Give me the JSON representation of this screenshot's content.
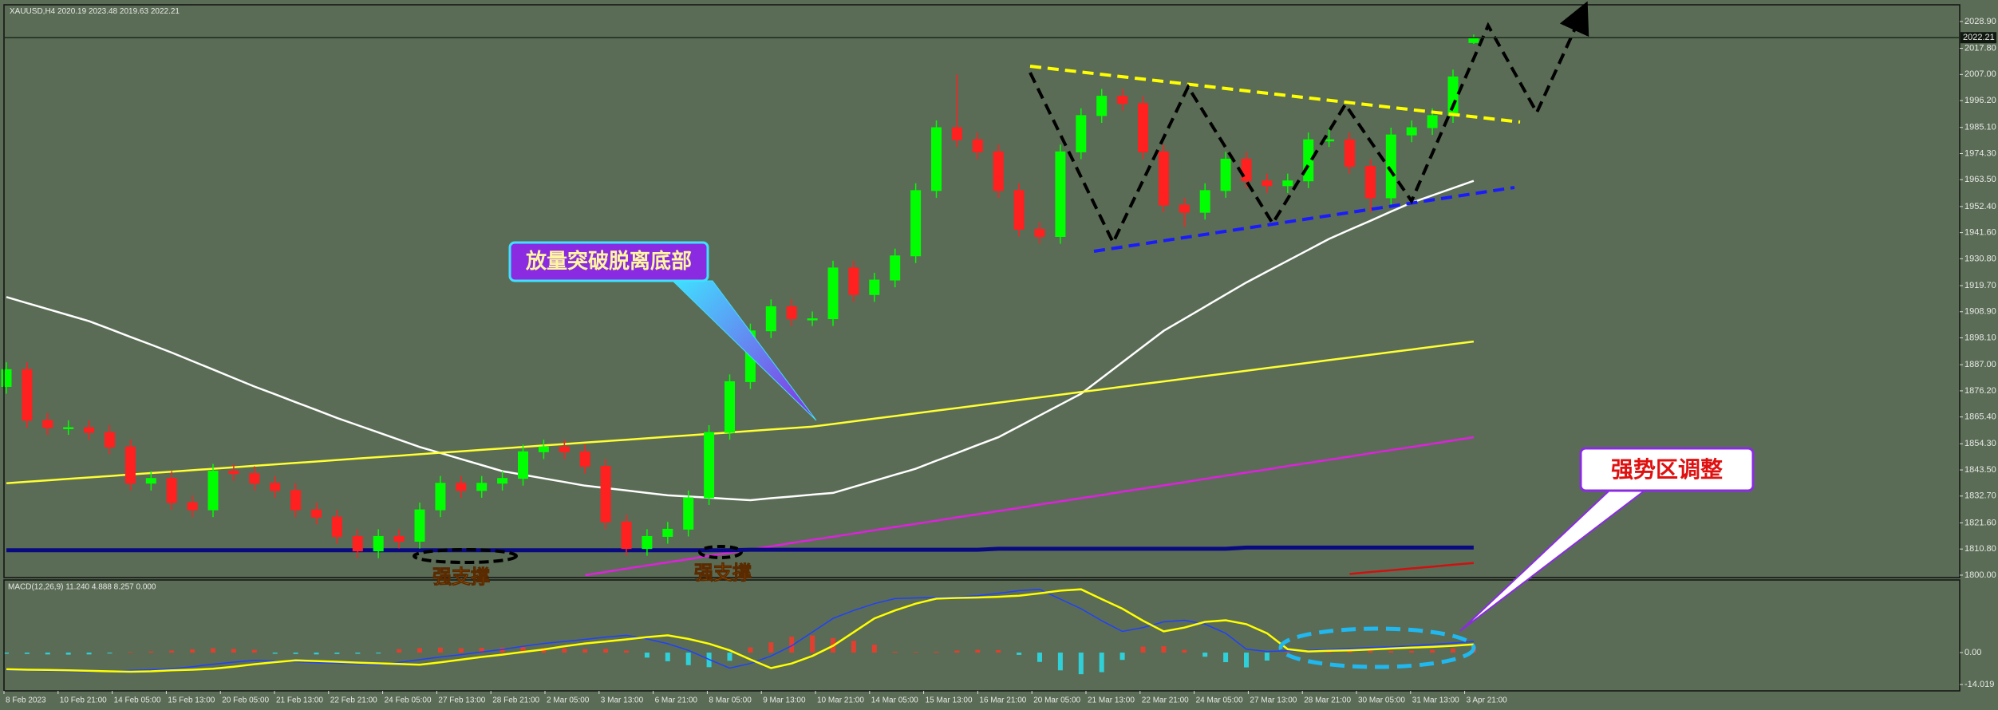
{
  "chart_data": {
    "type": "candlestick",
    "symbol": "XAUUSD,H4",
    "open": [
      1878,
      1885,
      1864,
      1861,
      1861,
      1859,
      1853,
      1838,
      1840,
      1830,
      1827,
      1843,
      1842,
      1838,
      1835,
      1827,
      1824,
      1816,
      1810,
      1816,
      1814,
      1827,
      1838,
      1835,
      1838,
      1840,
      1851,
      1853,
      1851,
      1845,
      1822,
      1811,
      1816,
      1819,
      1832,
      1859,
      1880,
      1901,
      1911,
      1906,
      1906,
      1927,
      1916,
      1922,
      1932,
      1959,
      1985,
      1980,
      1975,
      1959,
      1943,
      1940,
      1975,
      1990,
      1998,
      1995,
      1975,
      1953,
      1950,
      1959,
      1972,
      1963,
      1961,
      1963,
      1980,
      1980,
      1969,
      1956,
      1982,
      1985,
      1990,
      2020.19
    ],
    "high": [
      1888,
      1888,
      1867,
      1864,
      1864,
      1862,
      1856,
      1843,
      1843,
      1833,
      1846,
      1846,
      1845,
      1841,
      1838,
      1830,
      1827,
      1819,
      1819,
      1819,
      1830,
      1841,
      1841,
      1841,
      1843,
      1854,
      1856,
      1856,
      1854,
      1848,
      1825,
      1819,
      1822,
      1835,
      1862,
      1883,
      1904,
      1914,
      1914,
      1909,
      1930,
      1930,
      1925,
      1935,
      1962,
      1988,
      2007,
      1983,
      1978,
      1962,
      1946,
      1978,
      1993,
      2001,
      2001,
      1998,
      1978,
      1956,
      1962,
      1975,
      1975,
      1966,
      1966,
      1983,
      1985,
      1983,
      1972,
      1985,
      1988,
      1993,
      2009,
      2023.48
    ],
    "low": [
      1875,
      1861,
      1858,
      1858,
      1856,
      1850,
      1835,
      1835,
      1827,
      1824,
      1824,
      1839,
      1835,
      1832,
      1824,
      1821,
      1813,
      1807,
      1807,
      1811,
      1811,
      1824,
      1832,
      1832,
      1835,
      1837,
      1848,
      1848,
      1842,
      1819,
      1808,
      1808,
      1813,
      1816,
      1829,
      1856,
      1877,
      1898,
      1903,
      1903,
      1903,
      1913,
      1913,
      1919,
      1929,
      1956,
      1977,
      1972,
      1956,
      1940,
      1937,
      1937,
      1972,
      1987,
      1992,
      1972,
      1950,
      1944,
      1947,
      1956,
      1960,
      1958,
      1958,
      1960,
      1977,
      1966,
      1950,
      1953,
      1979,
      1982,
      1987,
      2019.63
    ],
    "close": [
      1885,
      1864,
      1861,
      1861,
      1859,
      1853,
      1838,
      1840,
      1830,
      1827,
      1843,
      1842,
      1838,
      1835,
      1827,
      1824,
      1816,
      1810,
      1816,
      1814,
      1827,
      1838,
      1835,
      1838,
      1840,
      1851,
      1853,
      1851,
      1845,
      1822,
      1811,
      1816,
      1819,
      1832,
      1859,
      1880,
      1901,
      1911,
      1906,
      1906,
      1927,
      1916,
      1922,
      1932,
      1959,
      1985,
      1980,
      1975,
      1959,
      1943,
      1940,
      1975,
      1990,
      1998,
      1995,
      1975,
      1953,
      1950,
      1959,
      1972,
      1963,
      1961,
      1963,
      1980,
      1980,
      1969,
      1956,
      1982,
      1985,
      1990,
      2006,
      2022.21
    ],
    "up_color": "#00ff00",
    "down_color": "#ff2020",
    "ylim": [
      1799,
      2035.8
    ],
    "yticks": [
      {
        "value": 2028.9,
        "label": "2028.90"
      },
      {
        "value": 2017.8,
        "label": "2017.80"
      },
      {
        "value": 2007,
        "label": "2007.00"
      },
      {
        "value": 1996.2,
        "label": "1996.20"
      },
      {
        "value": 1985.1,
        "label": "1985.10"
      },
      {
        "value": 1974.3,
        "label": "1974.30"
      },
      {
        "value": 1963.5,
        "label": "1963.50"
      },
      {
        "value": 1952.4,
        "label": "1952.40"
      },
      {
        "value": 1941.6,
        "label": "1941.60"
      },
      {
        "value": 1930.8,
        "label": "1930.80"
      },
      {
        "value": 1919.7,
        "label": "1919.70"
      },
      {
        "value": 1908.9,
        "label": "1908.90"
      },
      {
        "value": 1898.1,
        "label": "1898.10"
      },
      {
        "value": 1887,
        "label": "1887.00"
      },
      {
        "value": 1876.2,
        "label": "1876.20"
      },
      {
        "value": 1865.4,
        "label": "1865.40"
      },
      {
        "value": 1854.3,
        "label": "1854.30"
      },
      {
        "value": 1843.5,
        "label": "1843.50"
      },
      {
        "value": 1832.7,
        "label": "1832.70"
      },
      {
        "value": 1821.6,
        "label": "1821.60"
      },
      {
        "value": 1810.8,
        "label": "1810.80"
      },
      {
        "value": 1800,
        "label": "1800.00"
      }
    ],
    "xlabels": [
      "8 Feb 2023",
      "10 Feb 21:00",
      "14 Feb 05:00",
      "15 Feb 13:00",
      "20 Feb 05:00",
      "21 Feb 13:00",
      "22 Feb 21:00",
      "24 Feb 05:00",
      "27 Feb 13:00",
      "28 Feb 21:00",
      "2 Mar 05:00",
      "3 Mar 13:00",
      "6 Mar 21:00",
      "8 Mar 05:00",
      "9 Mar 13:00",
      "10 Mar 21:00",
      "14 Mar 05:00",
      "15 Mar 13:00",
      "16 Mar 21:00",
      "20 Mar 05:00",
      "21 Mar 13:00",
      "22 Mar 21:00",
      "24 Mar 05:00",
      "27 Mar 13:00",
      "28 Mar 21:00",
      "30 Mar 05:00",
      "31 Mar 13:00",
      "3 Apr 21:00"
    ],
    "grid": false,
    "overlays": [
      {
        "color": "#ffffff",
        "values": [
          1915,
          1912.5,
          1910,
          1907.5,
          1905,
          1901.8,
          1898.5,
          1895.3,
          1892,
          1888.5,
          1885,
          1881.5,
          1878,
          1874.8,
          1871.5,
          1868.3,
          1865,
          1862,
          1859,
          1856,
          1853,
          1850.5,
          1848,
          1845.5,
          1843,
          1841.5,
          1840,
          1838.5,
          1837,
          1836,
          1835,
          1834,
          1833,
          1832.5,
          1832,
          1831.5,
          1831,
          1831.8,
          1832.5,
          1833.3,
          1834,
          1836.5,
          1839,
          1841.5,
          1844,
          1847.3,
          1850.5,
          1853.8,
          1857,
          1861.5,
          1866,
          1870.5,
          1875,
          1881.5,
          1888,
          1894.5,
          1901,
          1906,
          1911,
          1916,
          1921,
          1925.5,
          1930,
          1934.5,
          1939,
          1942.8,
          1946.5,
          1950.3,
          1954,
          1957,
          1960,
          1963
        ]
      },
      {
        "color": "#ffff33",
        "values": [
          1838,
          1838.6,
          1839.2,
          1839.8,
          1840.4,
          1841,
          1841.6,
          1842.2,
          1842.8,
          1843.4,
          1844,
          1844.6,
          1845.2,
          1845.8,
          1846.4,
          1847,
          1847.6,
          1848.2,
          1848.8,
          1849.4,
          1850,
          1850.6,
          1851.2,
          1851.8,
          1852.4,
          1853,
          1853.6,
          1854.2,
          1854.8,
          1855.4,
          1856,
          1856.6,
          1857.2,
          1857.8,
          1858.4,
          1859,
          1859.6,
          1860.2,
          1860.8,
          1861.4,
          1862.5,
          1863.6,
          1864.7,
          1865.8,
          1866.9,
          1868,
          1869.1,
          1870.2,
          1871.3,
          1872.4,
          1873.5,
          1874.6,
          1875.7,
          1876.8,
          1877.9,
          1879,
          1880.1,
          1881.2,
          1882.3,
          1883.4,
          1884.5,
          1885.6,
          1886.7,
          1887.8,
          1888.9,
          1890,
          1891.1,
          1892.2,
          1893.3,
          1894.4,
          1895.5,
          1896.6
        ]
      },
      {
        "color": "#e020e0",
        "values": [
          null,
          null,
          null,
          null,
          null,
          null,
          null,
          null,
          null,
          null,
          null,
          null,
          null,
          null,
          null,
          null,
          null,
          null,
          null,
          null,
          null,
          null,
          null,
          null,
          null,
          null,
          null,
          null,
          1800,
          1801.3,
          1802.7,
          1804,
          1805.3,
          1806.6,
          1808,
          1809.3,
          1810.6,
          1811.9,
          1813.3,
          1814.6,
          1815.9,
          1817.2,
          1818.6,
          1819.9,
          1821.2,
          1822.5,
          1823.9,
          1825.2,
          1826.5,
          1827.8,
          1829.2,
          1830.5,
          1831.8,
          1833.1,
          1834.5,
          1835.8,
          1837.1,
          1838.4,
          1839.8,
          1841.1,
          1842.4,
          1843.7,
          1845.1,
          1846.4,
          1847.7,
          1849,
          1850.4,
          1851.7,
          1853,
          1854.3,
          1855.7,
          1857
        ]
      },
      {
        "color": "#0a0a80",
        "values": [
          1810.3,
          1810.3,
          1810.3,
          1810.3,
          1810.3,
          1810.3,
          1810.3,
          1810.3,
          1810.3,
          1810.3,
          1810.3,
          1810.3,
          1810.3,
          1810.3,
          1810.3,
          1810.3,
          1810.3,
          1810.3,
          1810.3,
          1810.3,
          1810.3,
          1810.3,
          1810.3,
          1810.3,
          1810.3,
          1810.3,
          1810.3,
          1810.3,
          1810.3,
          1810.3,
          1810.3,
          1810.3,
          1810.3,
          1810.3,
          1810.3,
          1810.3,
          1810.5,
          1810.5,
          1810.5,
          1810.5,
          1810.5,
          1810.5,
          1810.5,
          1810.5,
          1810.5,
          1810.5,
          1810.5,
          1810.5,
          1810.9,
          1810.9,
          1810.9,
          1810.9,
          1810.9,
          1810.9,
          1810.9,
          1810.9,
          1810.9,
          1810.9,
          1810.9,
          1810.9,
          1811.4,
          1811.4,
          1811.4,
          1811.4,
          1811.4,
          1811.4,
          1811.4,
          1811.4,
          1811.4,
          1811.4,
          1811.4,
          1811.4
        ]
      },
      {
        "color": "#d01010",
        "values": [
          null,
          null,
          null,
          null,
          null,
          null,
          null,
          null,
          null,
          null,
          null,
          null,
          null,
          null,
          null,
          null,
          null,
          null,
          null,
          null,
          null,
          null,
          null,
          null,
          null,
          null,
          null,
          null,
          null,
          null,
          null,
          null,
          null,
          null,
          null,
          null,
          null,
          null,
          null,
          null,
          null,
          null,
          null,
          null,
          null,
          null,
          null,
          null,
          null,
          null,
          null,
          null,
          null,
          null,
          null,
          null,
          null,
          null,
          null,
          null,
          null,
          null,
          null,
          null,
          null,
          1800.5,
          1801.3,
          1802,
          1802.8,
          1803.5,
          1804.3,
          1805
        ]
      }
    ],
    "macd": {
      "label": "MACD(12,26,9) 11.240 4.888 8.257 0.000",
      "main": [
        -7.6,
        -7.8,
        -8,
        -8.2,
        -8.4,
        -8.2,
        -7.8,
        -7.5,
        -7.1,
        -6.2,
        -5.1,
        -4.2,
        -3.4,
        -3.7,
        -4,
        -4.4,
        -4.7,
        -5,
        -5.3,
        -4.3,
        -3.1,
        -1.9,
        -0.9,
        0.3,
        1.4,
        2.8,
        4,
        4.9,
        5.8,
        6.8,
        7.6,
        6,
        3.9,
        1,
        -3,
        -6.8,
        -4.8,
        -1.5,
        3,
        9,
        15,
        18.5,
        21.5,
        23.7,
        24,
        24.2,
        24.5,
        25,
        26,
        27.2,
        27.8,
        23.5,
        19.3,
        14,
        9.3,
        11,
        13.5,
        14.2,
        12.5,
        8.5,
        1.5,
        0.5,
        0.8,
        1,
        1.4,
        1.8,
        2.2,
        2.5,
        3,
        3.6,
        4.2,
        4.9
      ],
      "main_color": "#2040ff",
      "signal": [
        -7.3,
        -7.5,
        -7.6,
        -7.8,
        -8,
        -8.2,
        -8.4,
        -8.2,
        -7.8,
        -7.5,
        -7.1,
        -6.2,
        -5.1,
        -4.2,
        -3.4,
        -3.7,
        -4,
        -4.4,
        -4.7,
        -5,
        -5.3,
        -4.3,
        -3.1,
        -1.9,
        -0.9,
        0.3,
        1.4,
        2.8,
        4,
        4.9,
        5.8,
        6.8,
        7.6,
        6,
        3.9,
        1,
        -3,
        -6.8,
        -4.8,
        -1.5,
        3,
        9,
        15,
        18.5,
        21.5,
        23.7,
        24,
        24.2,
        24.5,
        25,
        26,
        27.2,
        27.8,
        23.5,
        19.3,
        14,
        9.3,
        11,
        13.5,
        14.2,
        12.5,
        8.5,
        1.5,
        0.5,
        0.8,
        1,
        1.4,
        1.8,
        2.2,
        2.5,
        3,
        3.6
      ],
      "signal_color": "#ffff00",
      "histogram": [
        -0.5,
        -0.6,
        -0.8,
        -0.9,
        -0.8,
        -0.4,
        0.3,
        0.5,
        0.9,
        1.4,
        1.9,
        1.6,
        1.2,
        -0.5,
        -0.6,
        -0.8,
        -0.6,
        -0.5,
        -0.4,
        1.5,
        2,
        2.2,
        1.9,
        2.1,
        2.2,
        2.4,
        2.1,
        1.8,
        1.5,
        1.6,
        0.9,
        -2.2,
        -3.8,
        -5.5,
        -6.4,
        -3.6,
        2.3,
        4.5,
        7,
        7.5,
        6.4,
        5.2,
        3.5,
        0.4,
        0.3,
        0.4,
        0.9,
        1.2,
        1.1,
        -1,
        -4.1,
        -7.8,
        -9.5,
        -8.6,
        -3.2,
        2.6,
        2.8,
        1.2,
        -1.8,
        -4.2,
        -6.5,
        -3.5,
        0.4,
        0.6,
        0.7,
        0.8,
        0.8,
        0.7,
        0.8,
        1.2,
        1.8,
        2.5
      ],
      "up_color": "#e04030",
      "down_color": "#30d0d8",
      "ylim": [
        -16.8,
        31.9
      ],
      "yticks": [
        {
          "value": 0,
          "label": "0.00"
        },
        {
          "value": -14.019,
          "label": "-14.019"
        }
      ]
    },
    "annotations": {
      "breakout": "放量突破脱离底部",
      "consolidation": "强势区调整",
      "support": [
        "强支撑",
        "强支撑"
      ]
    }
  }
}
